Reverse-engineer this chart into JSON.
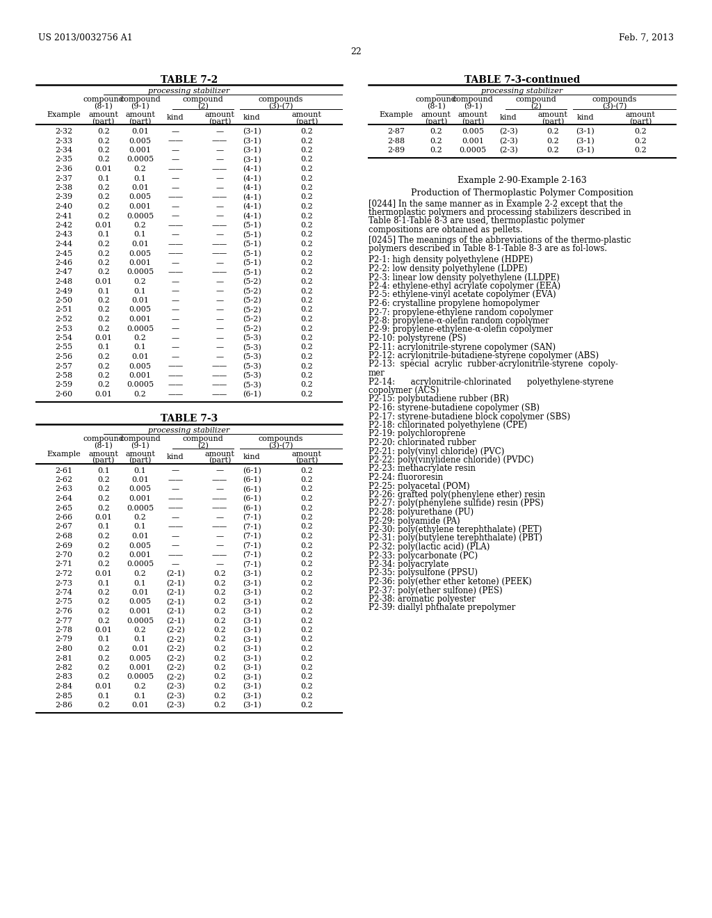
{
  "header_left": "US 2013/0032756 A1",
  "header_right": "Feb. 7, 2013",
  "page_number": "22",
  "background_color": "#ffffff",
  "table72_title": "TABLE 7-2",
  "table73_title": "TABLE 7-3",
  "table73cont_title": "TABLE 7-3-continued",
  "table72_data": [
    [
      "2-32",
      "0.2",
      "0.01",
      "—",
      "—",
      "(3-1)",
      "0.2"
    ],
    [
      "2-33",
      "0.2",
      "0.005",
      "——",
      "——",
      "(3-1)",
      "0.2"
    ],
    [
      "2-34",
      "0.2",
      "0.001",
      "—",
      "—",
      "(3-1)",
      "0.2"
    ],
    [
      "2-35",
      "0.2",
      "0.0005",
      "—",
      "—",
      "(3-1)",
      "0.2"
    ],
    [
      "2-36",
      "0.01",
      "0.2",
      "——",
      "——",
      "(4-1)",
      "0.2"
    ],
    [
      "2-37",
      "0.1",
      "0.1",
      "—",
      "—",
      "(4-1)",
      "0.2"
    ],
    [
      "2-38",
      "0.2",
      "0.01",
      "—",
      "—",
      "(4-1)",
      "0.2"
    ],
    [
      "2-39",
      "0.2",
      "0.005",
      "——",
      "——",
      "(4-1)",
      "0.2"
    ],
    [
      "2-40",
      "0.2",
      "0.001",
      "—",
      "—",
      "(4-1)",
      "0.2"
    ],
    [
      "2-41",
      "0.2",
      "0.0005",
      "—",
      "—",
      "(4-1)",
      "0.2"
    ],
    [
      "2-42",
      "0.01",
      "0.2",
      "——",
      "——",
      "(5-1)",
      "0.2"
    ],
    [
      "2-43",
      "0.1",
      "0.1",
      "—",
      "—",
      "(5-1)",
      "0.2"
    ],
    [
      "2-44",
      "0.2",
      "0.01",
      "——",
      "——",
      "(5-1)",
      "0.2"
    ],
    [
      "2-45",
      "0.2",
      "0.005",
      "——",
      "——",
      "(5-1)",
      "0.2"
    ],
    [
      "2-46",
      "0.2",
      "0.001",
      "—",
      "—",
      "(5-1)",
      "0.2"
    ],
    [
      "2-47",
      "0.2",
      "0.0005",
      "——",
      "——",
      "(5-1)",
      "0.2"
    ],
    [
      "2-48",
      "0.01",
      "0.2",
      "—",
      "—",
      "(5-2)",
      "0.2"
    ],
    [
      "2-49",
      "0.1",
      "0.1",
      "—",
      "—",
      "(5-2)",
      "0.2"
    ],
    [
      "2-50",
      "0.2",
      "0.01",
      "—",
      "—",
      "(5-2)",
      "0.2"
    ],
    [
      "2-51",
      "0.2",
      "0.005",
      "—",
      "—",
      "(5-2)",
      "0.2"
    ],
    [
      "2-52",
      "0.2",
      "0.001",
      "—",
      "—",
      "(5-2)",
      "0.2"
    ],
    [
      "2-53",
      "0.2",
      "0.0005",
      "—",
      "—",
      "(5-2)",
      "0.2"
    ],
    [
      "2-54",
      "0.01",
      "0.2",
      "—",
      "—",
      "(5-3)",
      "0.2"
    ],
    [
      "2-55",
      "0.1",
      "0.1",
      "—",
      "—",
      "(5-3)",
      "0.2"
    ],
    [
      "2-56",
      "0.2",
      "0.01",
      "—",
      "—",
      "(5-3)",
      "0.2"
    ],
    [
      "2-57",
      "0.2",
      "0.005",
      "——",
      "——",
      "(5-3)",
      "0.2"
    ],
    [
      "2-58",
      "0.2",
      "0.001",
      "——",
      "——",
      "(5-3)",
      "0.2"
    ],
    [
      "2-59",
      "0.2",
      "0.0005",
      "——",
      "——",
      "(5-3)",
      "0.2"
    ],
    [
      "2-60",
      "0.01",
      "0.2",
      "——",
      "——",
      "(6-1)",
      "0.2"
    ]
  ],
  "table73_data": [
    [
      "2-61",
      "0.1",
      "0.1",
      "—",
      "—",
      "(6-1)",
      "0.2"
    ],
    [
      "2-62",
      "0.2",
      "0.01",
      "——",
      "——",
      "(6-1)",
      "0.2"
    ],
    [
      "2-63",
      "0.2",
      "0.005",
      "—",
      "—",
      "(6-1)",
      "0.2"
    ],
    [
      "2-64",
      "0.2",
      "0.001",
      "——",
      "——",
      "(6-1)",
      "0.2"
    ],
    [
      "2-65",
      "0.2",
      "0.0005",
      "——",
      "——",
      "(6-1)",
      "0.2"
    ],
    [
      "2-66",
      "0.01",
      "0.2",
      "—",
      "—",
      "(7-1)",
      "0.2"
    ],
    [
      "2-67",
      "0.1",
      "0.1",
      "——",
      "——",
      "(7-1)",
      "0.2"
    ],
    [
      "2-68",
      "0.2",
      "0.01",
      "—",
      "—",
      "(7-1)",
      "0.2"
    ],
    [
      "2-69",
      "0.2",
      "0.005",
      "—",
      "—",
      "(7-1)",
      "0.2"
    ],
    [
      "2-70",
      "0.2",
      "0.001",
      "——",
      "——",
      "(7-1)",
      "0.2"
    ],
    [
      "2-71",
      "0.2",
      "0.0005",
      "—",
      "—",
      "(7-1)",
      "0.2"
    ],
    [
      "2-72",
      "0.01",
      "0.2",
      "(2-1)",
      "0.2",
      "(3-1)",
      "0.2"
    ],
    [
      "2-73",
      "0.1",
      "0.1",
      "(2-1)",
      "0.2",
      "(3-1)",
      "0.2"
    ],
    [
      "2-74",
      "0.2",
      "0.01",
      "(2-1)",
      "0.2",
      "(3-1)",
      "0.2"
    ],
    [
      "2-75",
      "0.2",
      "0.005",
      "(2-1)",
      "0.2",
      "(3-1)",
      "0.2"
    ],
    [
      "2-76",
      "0.2",
      "0.001",
      "(2-1)",
      "0.2",
      "(3-1)",
      "0.2"
    ],
    [
      "2-77",
      "0.2",
      "0.0005",
      "(2-1)",
      "0.2",
      "(3-1)",
      "0.2"
    ],
    [
      "2-78",
      "0.01",
      "0.2",
      "(2-2)",
      "0.2",
      "(3-1)",
      "0.2"
    ],
    [
      "2-79",
      "0.1",
      "0.1",
      "(2-2)",
      "0.2",
      "(3-1)",
      "0.2"
    ],
    [
      "2-80",
      "0.2",
      "0.01",
      "(2-2)",
      "0.2",
      "(3-1)",
      "0.2"
    ],
    [
      "2-81",
      "0.2",
      "0.005",
      "(2-2)",
      "0.2",
      "(3-1)",
      "0.2"
    ],
    [
      "2-82",
      "0.2",
      "0.001",
      "(2-2)",
      "0.2",
      "(3-1)",
      "0.2"
    ],
    [
      "2-83",
      "0.2",
      "0.0005",
      "(2-2)",
      "0.2",
      "(3-1)",
      "0.2"
    ],
    [
      "2-84",
      "0.01",
      "0.2",
      "(2-3)",
      "0.2",
      "(3-1)",
      "0.2"
    ],
    [
      "2-85",
      "0.1",
      "0.1",
      "(2-3)",
      "0.2",
      "(3-1)",
      "0.2"
    ],
    [
      "2-86",
      "0.2",
      "0.01",
      "(2-3)",
      "0.2",
      "(3-1)",
      "0.2"
    ]
  ],
  "table73cont_data": [
    [
      "2-87",
      "0.2",
      "0.005",
      "(2-3)",
      "0.2",
      "(3-1)",
      "0.2"
    ],
    [
      "2-88",
      "0.2",
      "0.001",
      "(2-3)",
      "0.2",
      "(3-1)",
      "0.2"
    ],
    [
      "2-89",
      "0.2",
      "0.0005",
      "(2-3)",
      "0.2",
      "(3-1)",
      "0.2"
    ]
  ],
  "example_heading": "Example 2-90-Example 2-163",
  "production_heading": "Production of Thermoplastic Polymer Composition",
  "para0244": "[0244]   In the same manner as in Example 2-2 except that the thermoplastic polymers and processing stabilizers described in Table 8-1-Table 8-3 are used, thermoplastic polymer compositions are obtained as pellets.",
  "para0245": "[0245]   The meanings of the abbreviations of the thermo-plastic polymers described in Table 8-1-Table 8-3 are as fol-lows.",
  "p2_list": [
    "P2-1: high density polyethylene (HDPE)",
    "P2-2: low density polyethylene (LDPE)",
    "P2-3: linear low density polyethylene (LLDPE)",
    "P2-4: ethylene-ethyl acrylate copolymer (EEA)",
    "P2-5: ethylene-vinyl acetate copolymer (EVA)",
    "P2-6: crystalline propylene homopolymer",
    "P2-7: propylene-ethylene random copolymer",
    "P2-8: propylene-α-olefin random copolymer",
    "P2-9: propylene-ethylene-α-olefin copolymer",
    "P2-10: polystyrene (PS)",
    "P2-11: acrylonitrile-styrene copolymer (SAN)",
    "P2-12: acrylonitrile-butadiene-styrene copolymer (ABS)",
    "P2-13:  special  acrylic  rubber-acrylonitrile-styrene  copoly-\nmer",
    "P2-14:      acrylonitrile-chlorinated      polyethylene-styrene\ncopolymer (ACS)",
    "P2-15: polybutadiene rubber (BR)",
    "P2-16: styrene-butadiene copolymer (SB)",
    "P2-17: styrene-butadiene block copolymer (SBS)",
    "P2-18: chlorinated polyethylene (CPE)",
    "P2-19: polychloroprene",
    "P2-20: chlorinated rubber",
    "P2-21: poly(vinyl chloride) (PVC)",
    "P2-22: poly(vinylidene chloride) (PVDC)",
    "P2-23: methacrylate resin",
    "P2-24: fluororesin",
    "P2-25: polyacetal (POM)",
    "P2-26: grafted poly(phenylene ether) resin",
    "P2-27: poly(phenylene sulfide) resin (PPS)",
    "P2-28: polyurethane (PU)",
    "P2-29: polyamide (PA)",
    "P2-30: poly(ethylene terephthalate) (PET)",
    "P2-31: poly(butylene terephthalate) (PBT)",
    "P2-32: poly(lactic acid) (PLA)",
    "P2-33: polycarbonate (PC)",
    "P2-34: polyacrylate",
    "P2-35: polysulfone (PPSU)",
    "P2-36: poly(ether ether ketone) (PEEK)",
    "P2-37: poly(ether sulfone) (PES)",
    "P2-38: aromatic polyester",
    "P2-39: diallyl phthalate prepolymer"
  ]
}
